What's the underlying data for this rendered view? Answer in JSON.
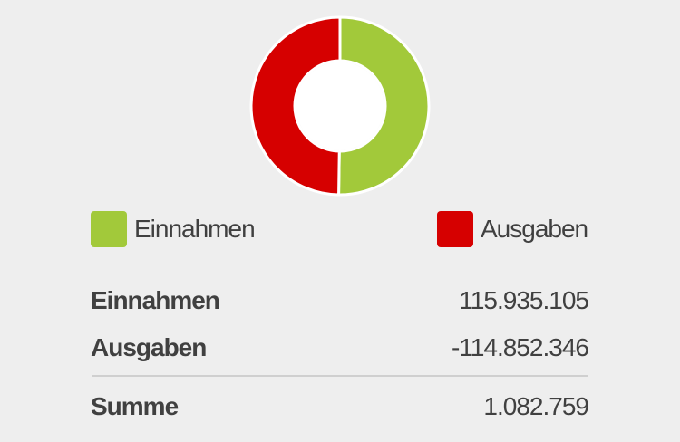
{
  "chart_data": {
    "type": "pie",
    "categories": [
      "Einnahmen",
      "Ausgaben"
    ],
    "values": [
      115935105,
      114852346
    ],
    "colors": [
      "#a2c93a",
      "#d60000"
    ],
    "title": "",
    "donut": true
  },
  "legend": {
    "items": [
      {
        "label": "Einnahmen",
        "color": "#a2c93a"
      },
      {
        "label": "Ausgaben",
        "color": "#d60000"
      }
    ]
  },
  "summary": {
    "income": {
      "label": "Einnahmen",
      "value": "115.935.105"
    },
    "expense": {
      "label": "Ausgaben",
      "value": "-114.852.346"
    },
    "total": {
      "label": "Summe",
      "value": "1.082.759"
    }
  }
}
